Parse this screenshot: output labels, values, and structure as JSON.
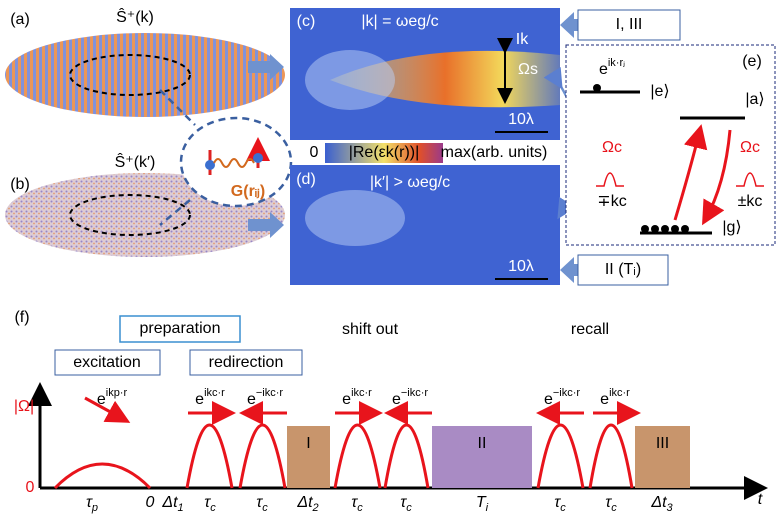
{
  "panels": [
    "(a)",
    "(b)",
    "(c)",
    "(d)",
    "(e)",
    "(f)"
  ],
  "cloud_a": {
    "operator": "Ŝ⁺(k)"
  },
  "cloud_b": {
    "operator": "Ŝ⁺(k′)"
  },
  "coupling": {
    "label": "G(rᵢⱼ)"
  },
  "panel_c": {
    "condition": "|k| = ωeg/c",
    "intensity": "Ik",
    "rabi": "Ωs",
    "scale": "10λ"
  },
  "colorbar": {
    "min": "0",
    "quantity": "|Re(εk(r))|",
    "max": "max(arb. units)"
  },
  "panel_d": {
    "condition": "|k′| > ωeg/c",
    "scale": "10λ"
  },
  "boxes": [
    "I, III",
    "II (Tᵢ)"
  ],
  "levels": {
    "phase": {
      "base": "e",
      "exp": "ik·rⱼ"
    },
    "excited": "|e⟩",
    "aux": "|a⟩",
    "ground": "|g⟩",
    "control_left": "Ωc",
    "k_left": "∓kc",
    "control_right": "Ωc",
    "k_right": "±kc"
  },
  "timeline": {
    "y_label": "|Ω|",
    "origin": "0",
    "t_label": "t",
    "headers": {
      "preparation": "preparation",
      "shift_out": "shift out",
      "recall": "recall",
      "excitation": "excitation",
      "redirection": "redirection"
    },
    "phases": [
      {
        "base": "e",
        "exp": "ikp·r"
      },
      {
        "base": "e",
        "exp": "ikc·r"
      },
      {
        "base": "e",
        "exp": "−ikc·r"
      },
      {
        "base": "e",
        "exp": "ikc·r"
      },
      {
        "base": "e",
        "exp": "−ikc·r"
      },
      {
        "base": "e",
        "exp": "−ikc·r"
      },
      {
        "base": "e",
        "exp": "ikc·r"
      }
    ],
    "blocks": [
      "I",
      "II",
      "III"
    ],
    "durations": [
      {
        "main": "τ",
        "sub": "p"
      },
      {
        "main": "0"
      },
      {
        "main": "Δt",
        "sub": "1"
      },
      {
        "main": "τ",
        "sub": "c"
      },
      {
        "main": "τ",
        "sub": "c"
      },
      {
        "main": "Δt",
        "sub": "2"
      },
      {
        "main": "τ",
        "sub": "c"
      },
      {
        "main": "τ",
        "sub": "c"
      },
      {
        "main": "T",
        "sub": "i"
      },
      {
        "main": "τ",
        "sub": "c"
      },
      {
        "main": "τ",
        "sub": "c"
      },
      {
        "main": "Δt",
        "sub": "3"
      }
    ]
  }
}
